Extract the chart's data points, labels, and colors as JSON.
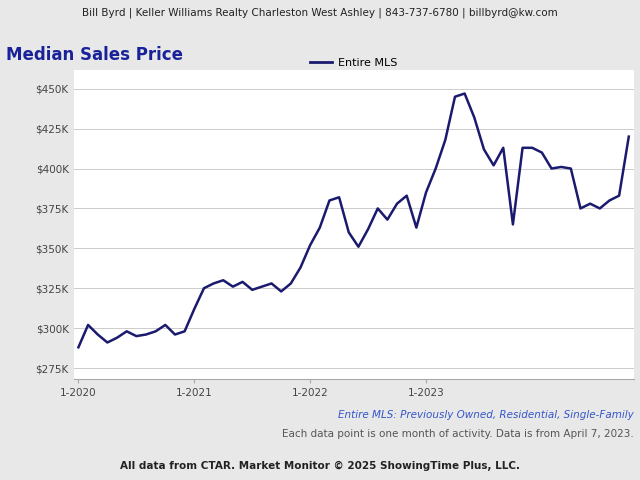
{
  "header_text": "Bill Byrd | Keller Williams Realty Charleston West Ashley | 843-737-6780 | billbyrd@kw.com",
  "title": "Median Sales Price",
  "title_color": "#1a2299",
  "legend_label": "Entire MLS",
  "line_color": "#1a1a6e",
  "footer_line1": "Entire MLS: Previously Owned, Residential, Single-Family",
  "footer_line1_color": "#3355cc",
  "footer_line2": "Each data point is one month of activity. Data is from April 7, 2023.",
  "footer_line3": "All data from CTAR. Market Monitor © 2025 ShowingTime Plus, LLC.",
  "ytick_labels": [
    "$275K",
    "$300K",
    "$325K",
    "$350K",
    "$375K",
    "$400K",
    "$425K",
    "$450K"
  ],
  "ytick_values": [
    275000,
    300000,
    325000,
    350000,
    375000,
    400000,
    425000,
    450000
  ],
  "ylim": [
    268000,
    462000
  ],
  "xtick_positions": [
    0,
    12,
    24,
    36
  ],
  "xtick_labels": [
    "1-2020",
    "1-2021",
    "1-2022",
    "1-2023"
  ],
  "background_color": "#e8e8e8",
  "plot_background": "#ffffff",
  "values": [
    288000,
    302000,
    296000,
    291000,
    294000,
    298000,
    295000,
    296000,
    298000,
    302000,
    296000,
    298000,
    312000,
    325000,
    328000,
    330000,
    326000,
    329000,
    324000,
    326000,
    328000,
    323000,
    328000,
    338000,
    352000,
    363000,
    380000,
    382000,
    360000,
    351000,
    362000,
    375000,
    368000,
    378000,
    383000,
    363000,
    385000,
    400000,
    418000,
    445000,
    447000,
    432000,
    412000,
    402000,
    413000,
    365000,
    413000,
    413000,
    410000,
    400000,
    401000,
    400000,
    375000,
    378000,
    375000,
    380000,
    383000,
    420000
  ]
}
